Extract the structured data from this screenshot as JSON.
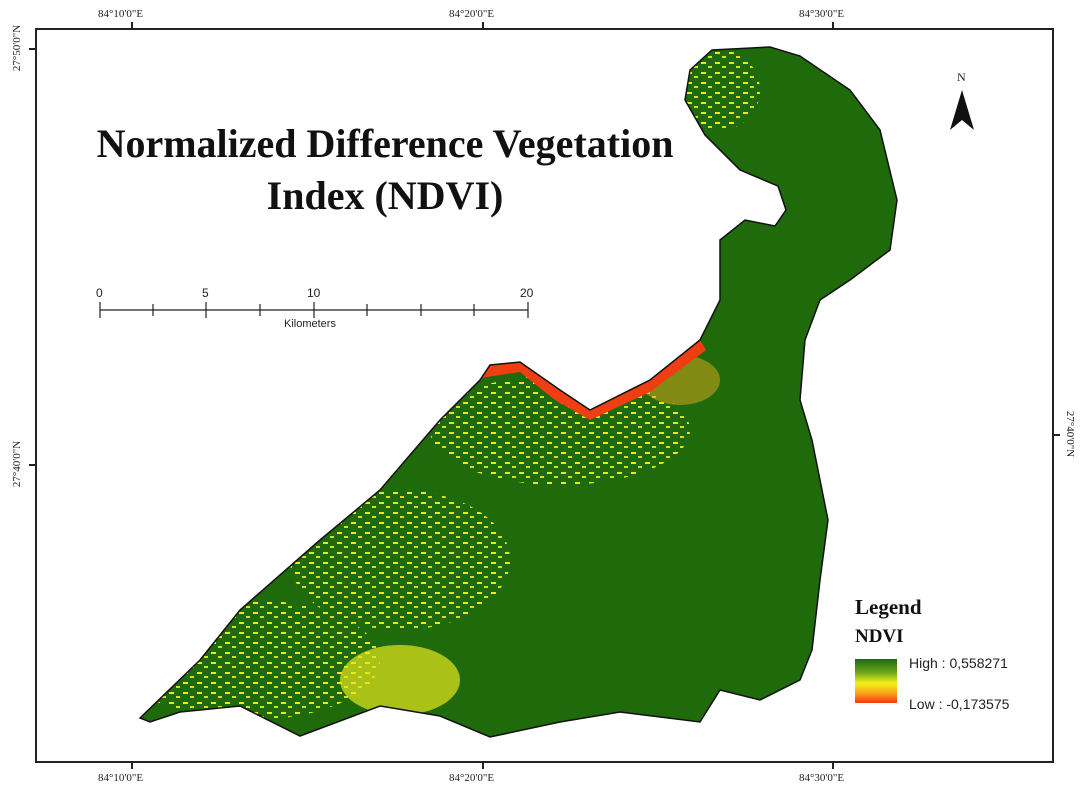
{
  "map": {
    "title_line1": "Normalized Difference Vegetation",
    "title_line2": "Index (NDVI)",
    "graticule": {
      "top": [
        "84°10'0\"E",
        "84°20'0\"E",
        "84°30'0\"E"
      ],
      "bottom": [
        "84°10'0\"E",
        "84°20'0\"E",
        "84°30'0\"E"
      ],
      "left": [
        "27°50'0\"N",
        "27°40'0\"N"
      ],
      "right": [
        "27°40'0\"N"
      ]
    },
    "scale_bar": {
      "labels": [
        "0",
        "5",
        "10",
        "20"
      ],
      "unit": "Kilometers"
    },
    "north_label": "N",
    "legend": {
      "heading": "Legend",
      "layer": "NDVI",
      "high": "High : 0,558271",
      "low": "Low : -0,173575",
      "high_value": 0.558271,
      "low_value": -0.173575,
      "colors": [
        "#1e6b0a",
        "#f4f21a",
        "#f03a10"
      ]
    }
  }
}
